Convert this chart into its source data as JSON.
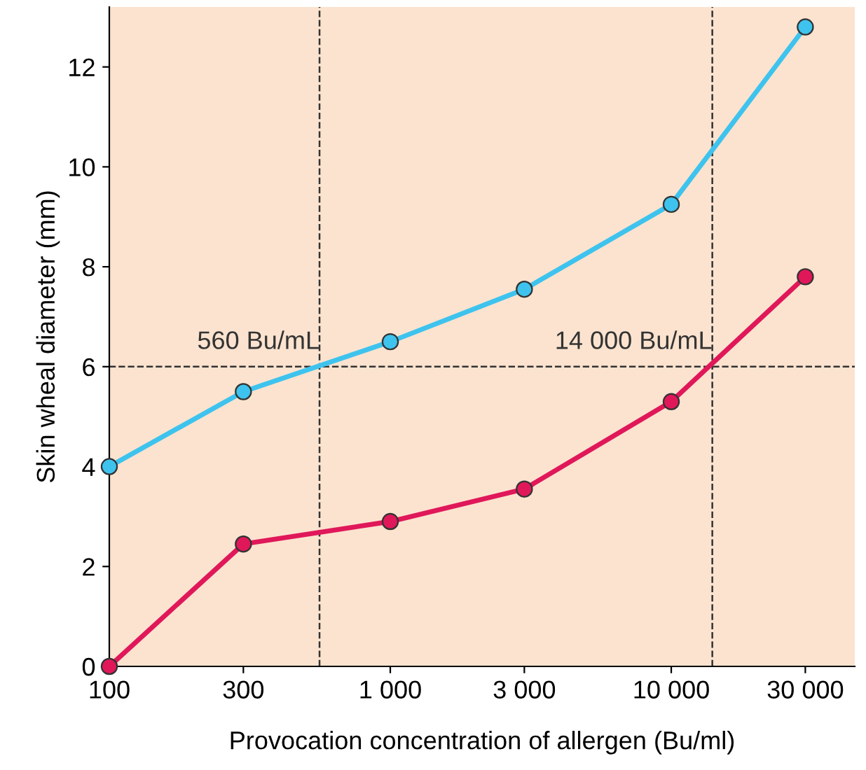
{
  "chart_data": {
    "type": "line",
    "xlabel": "Provocation concentration of allergen (Bu/ml)",
    "ylabel": "Skin wheal diameter (mm)",
    "x": [
      100,
      300,
      1000,
      3000,
      10000,
      30000
    ],
    "series": [
      {
        "color": "#3ec3ee",
        "values": [
          4.0,
          5.5,
          6.5,
          7.55,
          9.25,
          12.8
        ]
      },
      {
        "color": "#e0185a",
        "values": [
          0,
          2.45,
          2.9,
          3.55,
          5.3,
          7.8
        ]
      }
    ],
    "log": "x",
    "xlim": [
      100,
      45000
    ],
    "ylim": [
      0,
      13.2
    ],
    "xticks": [
      {
        "value": 100,
        "label": "100"
      },
      {
        "value": 300,
        "label": "300"
      },
      {
        "value": 1000,
        "label": "1 000"
      },
      {
        "value": 3000,
        "label": "3 000"
      },
      {
        "value": 10000,
        "label": "10 000"
      },
      {
        "value": 30000,
        "label": "30 000"
      }
    ],
    "yticks": [
      0,
      2,
      4,
      6,
      8,
      10,
      12
    ],
    "ref_lines": [
      {
        "axis": "y",
        "value": 6,
        "color": "#333333",
        "line_style": "dashed"
      },
      {
        "axis": "x",
        "value": 560,
        "label": "560 Bu/mL",
        "color": "#333333",
        "line_style": "dashed"
      },
      {
        "axis": "x",
        "value": 14000,
        "label": "14 000 Bu/mL",
        "color": "#333333",
        "line_style": "dashed"
      }
    ],
    "marker": "circle",
    "grid": false,
    "legend": false
  }
}
